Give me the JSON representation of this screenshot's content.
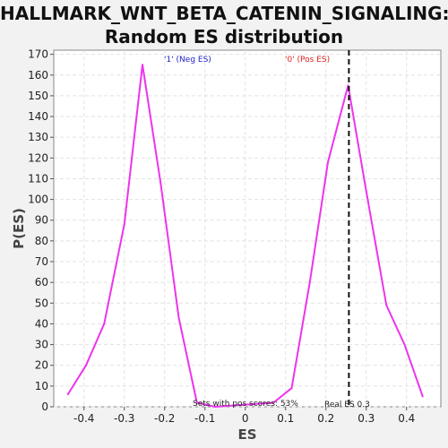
{
  "chart_data": {
    "type": "line",
    "title_line1": "HALLMARK_WNT_BETA_CATENIN_SIGNALING:",
    "title_line2": "Random ES distribution",
    "xlabel": "ES",
    "ylabel": "P(ES)",
    "xlim": [
      -0.475,
      0.485
    ],
    "ylim": [
      0,
      172
    ],
    "x_ticks": [
      -0.4,
      -0.3,
      -0.2,
      -0.1,
      0.0,
      0.1,
      0.2,
      0.3,
      0.4
    ],
    "x_tick_labels": [
      "-0.4",
      "-0.3",
      "-0.2",
      "-0.1",
      "0",
      "0.1",
      "0.2",
      "0.3",
      "0.4"
    ],
    "y_ticks": [
      0,
      10,
      20,
      30,
      40,
      50,
      60,
      70,
      80,
      90,
      100,
      110,
      120,
      130,
      140,
      150,
      160,
      170
    ],
    "grid": true,
    "series": [
      {
        "color": "#ee33ee",
        "x": [
          -0.44,
          -0.395,
          -0.35,
          -0.3,
          -0.255,
          -0.21,
          -0.165,
          -0.12,
          -0.075,
          0.07,
          0.115,
          0.16,
          0.205,
          0.255,
          0.3,
          0.35,
          0.395,
          0.44
        ],
        "y": [
          6,
          20,
          40,
          88,
          165,
          108,
          43,
          2,
          0,
          2,
          9,
          60,
          118,
          155,
          104,
          49,
          30,
          5
        ]
      }
    ],
    "real_es": 0.257,
    "annotations": {
      "neg_label": "'1' (Neg ES)",
      "pos_label": "'0' (Pos ES)",
      "neg_color": "#2222cc",
      "pos_color": "#dd2222",
      "pos_scores": "Sets with pos scores: 53%",
      "real_es": "Real ES 0.3"
    }
  }
}
